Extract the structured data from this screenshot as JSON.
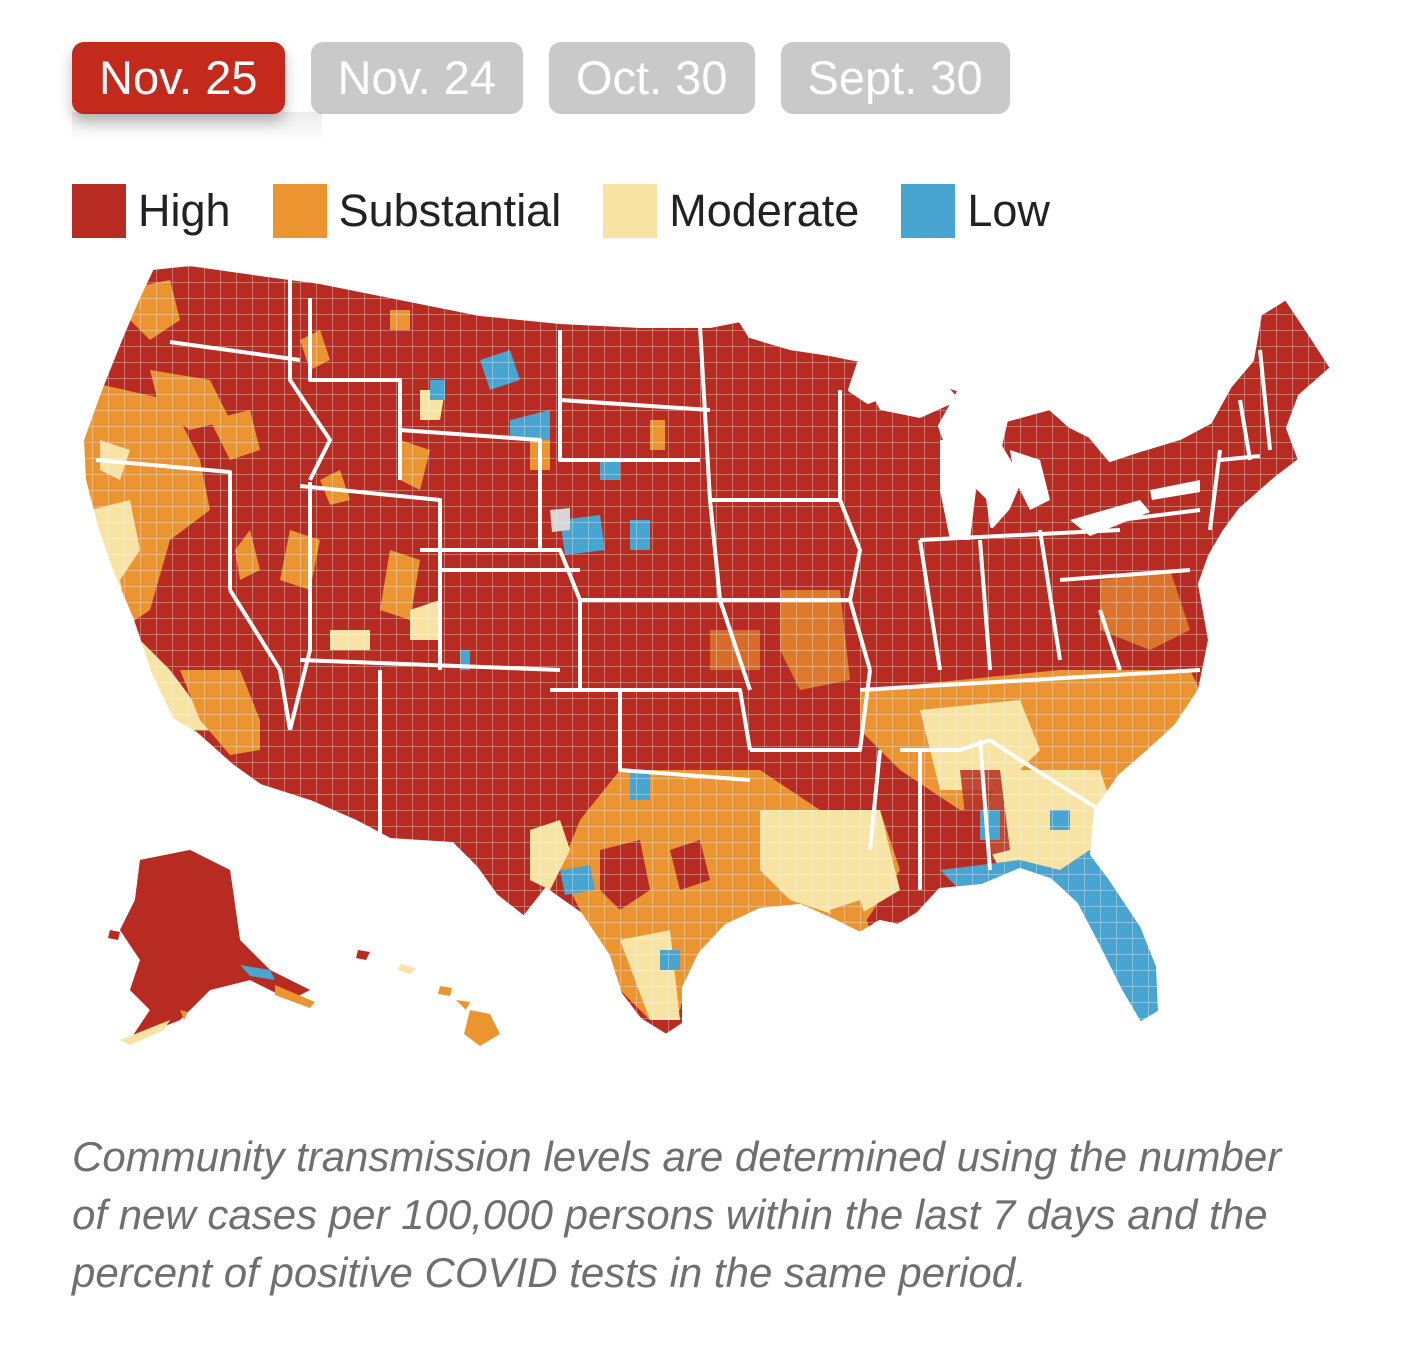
{
  "tabs": [
    {
      "label": "Nov. 25",
      "active": true
    },
    {
      "label": "Nov. 24",
      "active": false
    },
    {
      "label": "Oct. 30",
      "active": false
    },
    {
      "label": "Sept. 30",
      "active": false
    }
  ],
  "legend": [
    {
      "label": "High",
      "color": "#b82b22"
    },
    {
      "label": "Substantial",
      "color": "#ec9430"
    },
    {
      "label": "Moderate",
      "color": "#f8e3a3"
    },
    {
      "label": "Low",
      "color": "#48a5cf"
    }
  ],
  "colors": {
    "active_tab": "#c42a1c",
    "inactive_tab": "#c9c9c9",
    "border": "#ffffff"
  },
  "caption": "Community transmission levels are determined using the number of new cases per 100,000 persons within the last 7 days and the percent of positive COVID tests in the same period."
}
